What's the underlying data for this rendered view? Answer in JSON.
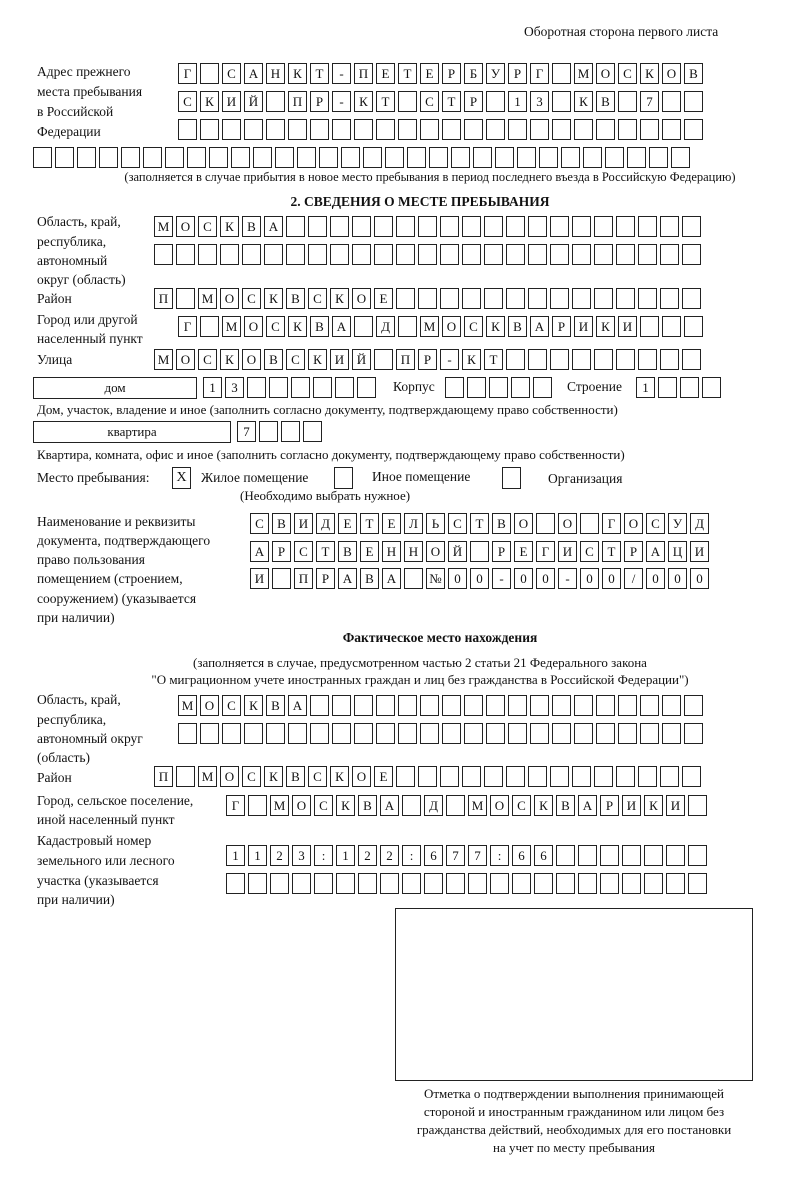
{
  "header": {
    "page_side": "Оборотная сторона первого листа"
  },
  "prev_address": {
    "label": [
      "Адрес прежнего",
      "места пребывания",
      "в Российской",
      "Федерации"
    ],
    "rows": [
      [
        "Г",
        "",
        "С",
        "А",
        "Н",
        "К",
        "Т",
        "-",
        "П",
        "Е",
        "Т",
        "Е",
        "Р",
        "Б",
        "У",
        "Р",
        "Г",
        "",
        "М",
        "О",
        "С",
        "К",
        "О",
        "В"
      ],
      [
        "С",
        "К",
        "И",
        "Й",
        "",
        "П",
        "Р",
        "-",
        "К",
        "Т",
        "",
        "С",
        "Т",
        "Р",
        "",
        "1",
        "3",
        "",
        "К",
        "В",
        "",
        "7",
        "",
        ""
      ],
      [
        "",
        "",
        "",
        "",
        "",
        "",
        "",
        "",
        "",
        "",
        "",
        "",
        "",
        "",
        "",
        "",
        "",
        "",
        "",
        "",
        "",
        "",
        "",
        ""
      ],
      [
        "",
        "",
        "",
        "",
        "",
        "",
        "",
        "",
        "",
        "",
        "",
        "",
        "",
        "",
        "",
        "",
        "",
        "",
        "",
        "",
        "",
        "",
        "",
        "",
        "",
        "",
        "",
        "",
        "",
        ""
      ]
    ],
    "note": "(заполняется в случае прибытия в новое место пребывания в период последнего въезда в Российскую Федерацию)"
  },
  "section2": {
    "title": "2. СВЕДЕНИЯ О МЕСТЕ ПРЕБЫВАНИЯ",
    "region_label": [
      "Область, край,",
      "республика,",
      "автономный",
      "округ (область)"
    ],
    "region_rows": [
      [
        "М",
        "О",
        "С",
        "К",
        "В",
        "А",
        "",
        "",
        "",
        "",
        "",
        "",
        "",
        "",
        "",
        "",
        "",
        "",
        "",
        "",
        "",
        "",
        "",
        "",
        ""
      ],
      [
        "",
        "",
        "",
        "",
        "",
        "",
        "",
        "",
        "",
        "",
        "",
        "",
        "",
        "",
        "",
        "",
        "",
        "",
        "",
        "",
        "",
        "",
        "",
        "",
        ""
      ]
    ],
    "district_label": "Район",
    "district": [
      "П",
      "",
      "М",
      "О",
      "С",
      "К",
      "В",
      "С",
      "К",
      "О",
      "Е",
      "",
      "",
      "",
      "",
      "",
      "",
      "",
      "",
      "",
      "",
      "",
      "",
      "",
      ""
    ],
    "city_label": [
      "Город или другой",
      "населенный пункт"
    ],
    "city": [
      "Г",
      "",
      "М",
      "О",
      "С",
      "К",
      "В",
      "А",
      "",
      "Д",
      "",
      "М",
      "О",
      "С",
      "К",
      "В",
      "А",
      "Р",
      "И",
      "К",
      "И",
      "",
      "",
      ""
    ],
    "street_label": "Улица",
    "street": [
      "М",
      "О",
      "С",
      "К",
      "О",
      "В",
      "С",
      "К",
      "И",
      "Й",
      "",
      "П",
      "Р",
      "-",
      "К",
      "Т",
      "",
      "",
      "",
      "",
      "",
      "",
      "",
      "",
      ""
    ],
    "house_type": "дом",
    "house": [
      "1",
      "3",
      "",
      "",
      "",
      "",
      "",
      ""
    ],
    "korpus_label": "Корпус",
    "korpus": [
      "",
      "",
      "",
      "",
      ""
    ],
    "building_label": "Строение",
    "building": [
      "1",
      "",
      "",
      ""
    ],
    "house_note": "Дом, участок, владение и иное (заполнить согласно документу, подтверждающему право собственности)",
    "apt_type": "квартира",
    "apt": [
      "7",
      "",
      "",
      ""
    ],
    "apt_note": "Квартира, комната, офис и иное (заполнить согласно документу, подтверждающему право собственности)",
    "stay_label": "Место пребывания:",
    "options": [
      {
        "mark": "Х",
        "label": "Жилое помещение",
        "checked": true
      },
      {
        "mark": "",
        "label": "Иное помещение",
        "checked": false
      },
      {
        "mark": "",
        "label": "Организация",
        "checked": false
      }
    ],
    "choose_note": "(Необходимо выбрать нужное)",
    "doc_label": [
      "Наименование и реквизиты",
      "документа, подтверждающего",
      "право пользования",
      "помещением (строением,",
      "сооружением) (указывается",
      "при наличии)"
    ],
    "doc_rows": [
      [
        "С",
        "В",
        "И",
        "Д",
        "Е",
        "Т",
        "Е",
        "Л",
        "Ь",
        "С",
        "Т",
        "В",
        "О",
        "",
        "О",
        "",
        "Г",
        "О",
        "С",
        "У",
        "Д"
      ],
      [
        "А",
        "Р",
        "С",
        "Т",
        "В",
        "Е",
        "Н",
        "Н",
        "О",
        "Й",
        "",
        "Р",
        "Е",
        "Г",
        "И",
        "С",
        "Т",
        "Р",
        "А",
        "Ц",
        "И"
      ],
      [
        "И",
        "",
        "П",
        "Р",
        "А",
        "В",
        "А",
        "",
        "№",
        "0",
        "0",
        "-",
        "0",
        "0",
        "-",
        "0",
        "0",
        "/",
        "0",
        "0",
        "0"
      ]
    ]
  },
  "actual": {
    "title": "Фактическое место нахождения",
    "note": [
      "(заполняется в случае, предусмотренном частью 2 статьи 21 Федерального закона",
      "\"О миграционном учете иностранных граждан и лиц без гражданства в Российской Федерации\")"
    ],
    "region_label": [
      "Область, край,",
      "республика,",
      "автономный округ",
      "(область)"
    ],
    "region_rows": [
      [
        "М",
        "О",
        "С",
        "К",
        "В",
        "А",
        "",
        "",
        "",
        "",
        "",
        "",
        "",
        "",
        "",
        "",
        "",
        "",
        "",
        "",
        "",
        "",
        "",
        ""
      ],
      [
        "",
        "",
        "",
        "",
        "",
        "",
        "",
        "",
        "",
        "",
        "",
        "",
        "",
        "",
        "",
        "",
        "",
        "",
        "",
        "",
        "",
        "",
        "",
        ""
      ]
    ],
    "district_label": "Район",
    "district": [
      "П",
      "",
      "М",
      "О",
      "С",
      "К",
      "В",
      "С",
      "К",
      "О",
      "Е",
      "",
      "",
      "",
      "",
      "",
      "",
      "",
      "",
      "",
      "",
      "",
      "",
      "",
      ""
    ],
    "city_label": [
      "Город, сельское поселение,",
      "иной населенный пункт"
    ],
    "city": [
      "Г",
      "",
      "М",
      "О",
      "С",
      "К",
      "В",
      "А",
      "",
      "Д",
      "",
      "М",
      "О",
      "С",
      "К",
      "В",
      "А",
      "Р",
      "И",
      "К",
      "И",
      ""
    ],
    "cadastral_label": [
      "Кадастровый номер",
      "земельного или лесного",
      "участка (указывается",
      "при наличии)"
    ],
    "cadastral_rows": [
      [
        "1",
        "1",
        "2",
        "3",
        ":",
        "1",
        "2",
        "2",
        ":",
        "6",
        "7",
        "7",
        ":",
        "6",
        "6",
        "",
        "",
        "",
        "",
        "",
        "",
        ""
      ],
      [
        "",
        "",
        "",
        "",
        "",
        "",
        "",
        "",
        "",
        "",
        "",
        "",
        "",
        "",
        "",
        "",
        "",
        "",
        "",
        "",
        "",
        ""
      ]
    ]
  },
  "stamp": {
    "caption": [
      "Отметка о подтверждении выполнения принимающей",
      "стороной и иностранным гражданином или лицом без",
      "гражданства действий, необходимых для его постановки",
      "на учет по месту пребывания"
    ]
  }
}
